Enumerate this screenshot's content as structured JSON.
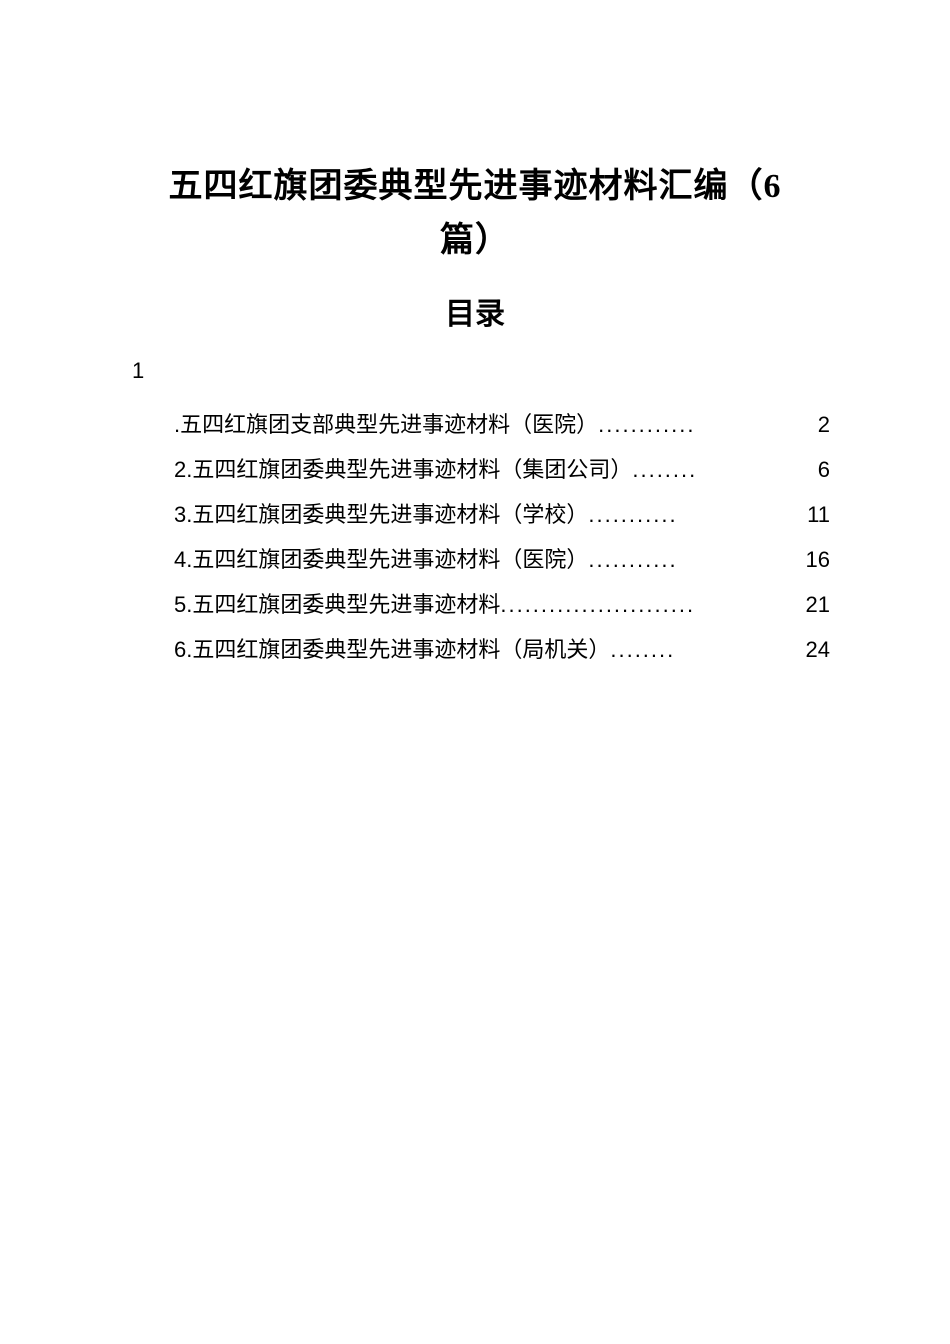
{
  "title_line1": "五四红旗团委典型先进事迹材料汇编（6",
  "title_line2": "篇）",
  "subtitle": "目录",
  "toc_leading_number": "1",
  "toc_items": [
    {
      "label": ".五四红旗团支部典型先进事迹材料（医院）",
      "dots": "............",
      "page": "2"
    },
    {
      "label": "2.五四红旗团委典型先进事迹材料（集团公司）",
      "dots": "........",
      "page": "6"
    },
    {
      "label": "3.五四红旗团委典型先进事迹材料（学校）",
      "dots": "...........",
      "page": "11"
    },
    {
      "label": "4.五四红旗团委典型先进事迹材料（医院）",
      "dots": "...........",
      "page": "16"
    },
    {
      "label": "5.五四红旗团委典型先进事迹材料",
      "dots": "........................",
      "page": "21"
    },
    {
      "label": "6.五四红旗团委典型先进事迹材料（局机关）",
      "dots": "........",
      "page": "24"
    }
  ],
  "colors": {
    "background": "#ffffff",
    "text": "#000000"
  }
}
